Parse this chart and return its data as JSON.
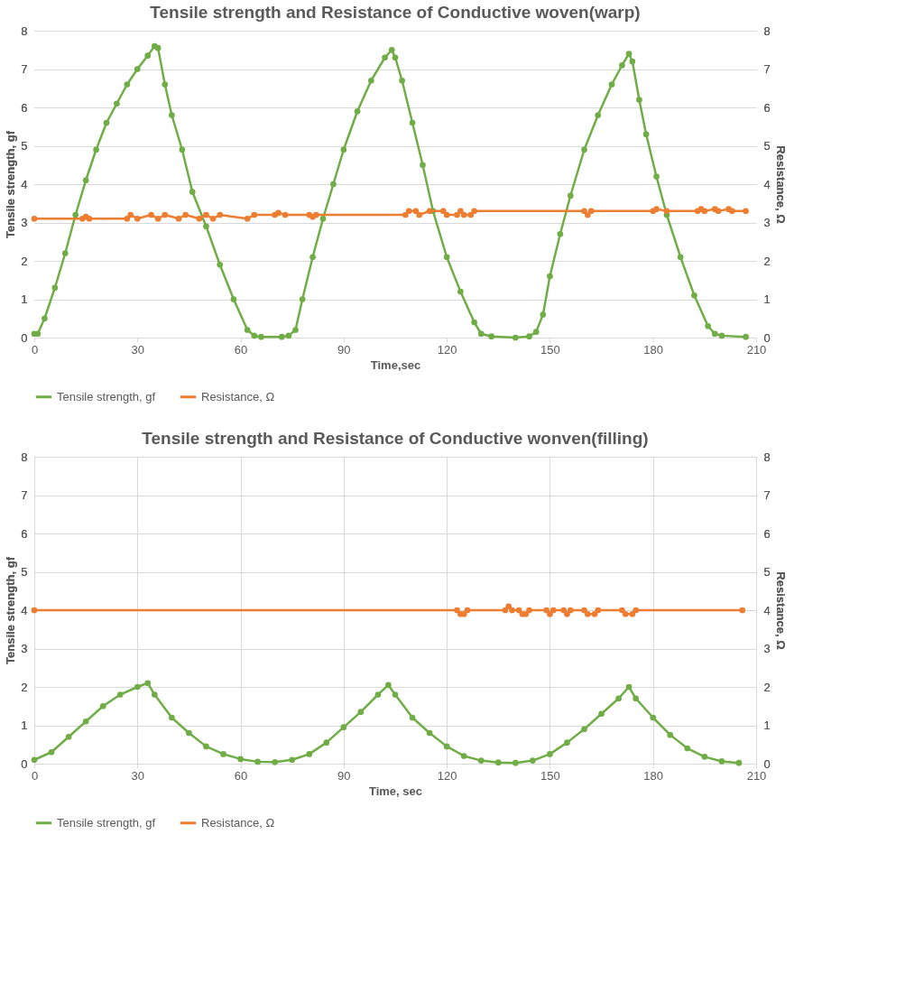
{
  "chart_data": [
    {
      "type": "line",
      "title": "Tensile strength and Resistance of Conductive woven(warp)",
      "xlabel": "Time,sec",
      "ylabel": "Tensile strength, gf",
      "y2label": "Resistance, Ω",
      "xlim": [
        0,
        210
      ],
      "xticks": [
        0,
        30,
        60,
        90,
        120,
        150,
        180,
        210
      ],
      "ylim": [
        0,
        8
      ],
      "yticks": [
        0,
        1,
        2,
        3,
        4,
        5,
        6,
        7,
        8
      ],
      "y2lim": [
        0,
        8
      ],
      "y2ticks": [
        0,
        1,
        2,
        3,
        4,
        5,
        6,
        7,
        8
      ],
      "grid": "y",
      "legend": "bottom",
      "marker": "circle",
      "line_style": "solid",
      "series": [
        {
          "name": "Tensile strength, gf",
          "color": "#70ad47",
          "x": [
            0,
            1,
            3,
            6,
            9,
            12,
            15,
            18,
            21,
            24,
            27,
            30,
            33,
            35,
            36,
            38,
            40,
            43,
            46,
            50,
            54,
            58,
            62,
            64,
            66,
            72,
            74,
            76,
            78,
            81,
            84,
            87,
            90,
            94,
            98,
            102,
            104,
            105,
            107,
            110,
            113,
            116,
            120,
            124,
            128,
            130,
            133,
            140,
            144,
            146,
            148,
            150,
            153,
            156,
            160,
            164,
            168,
            171,
            173,
            174,
            176,
            178,
            181,
            184,
            188,
            192,
            196,
            198,
            200,
            207
          ],
          "values": [
            0.1,
            0.1,
            0.5,
            1.3,
            2.2,
            3.2,
            4.1,
            4.9,
            5.6,
            6.1,
            6.6,
            7.0,
            7.35,
            7.6,
            7.55,
            6.6,
            5.8,
            4.9,
            3.8,
            2.9,
            1.9,
            1.0,
            0.2,
            0.05,
            0.02,
            0.02,
            0.05,
            0.2,
            1.0,
            2.1,
            3.1,
            4.0,
            4.9,
            5.9,
            6.7,
            7.3,
            7.5,
            7.3,
            6.7,
            5.6,
            4.5,
            3.3,
            2.1,
            1.2,
            0.4,
            0.1,
            0.03,
            0.0,
            0.03,
            0.15,
            0.6,
            1.6,
            2.7,
            3.7,
            4.9,
            5.8,
            6.6,
            7.1,
            7.4,
            7.2,
            6.2,
            5.3,
            4.2,
            3.2,
            2.1,
            1.1,
            0.3,
            0.1,
            0.05,
            0.02
          ]
        },
        {
          "name": "Resistance, Ω",
          "color": "#ed7d31",
          "axis": "y2",
          "x": [
            0,
            14,
            15,
            16,
            27,
            28,
            30,
            34,
            36,
            38,
            42,
            44,
            48,
            50,
            52,
            54,
            62,
            64,
            70,
            71,
            73,
            80,
            81,
            82,
            108,
            109,
            111,
            112,
            115,
            119,
            120,
            123,
            124,
            125,
            127,
            128,
            160,
            161,
            162,
            180,
            181,
            184,
            193,
            194,
            195,
            198,
            199,
            202,
            203,
            207
          ],
          "values": [
            3.1,
            3.1,
            3.15,
            3.1,
            3.1,
            3.2,
            3.1,
            3.2,
            3.1,
            3.2,
            3.1,
            3.2,
            3.1,
            3.2,
            3.1,
            3.2,
            3.1,
            3.2,
            3.2,
            3.25,
            3.2,
            3.2,
            3.15,
            3.2,
            3.2,
            3.3,
            3.3,
            3.2,
            3.3,
            3.3,
            3.2,
            3.2,
            3.3,
            3.2,
            3.2,
            3.3,
            3.3,
            3.2,
            3.3,
            3.3,
            3.35,
            3.3,
            3.3,
            3.35,
            3.3,
            3.35,
            3.3,
            3.35,
            3.3,
            3.3
          ]
        }
      ]
    },
    {
      "type": "line",
      "title": "Tensile strength and Resistance of Conductive wonven(filling)",
      "xlabel": "Time, sec",
      "ylabel": "Tensile strength, gf",
      "y2label": "Resistance, Ω",
      "xlim": [
        0,
        210
      ],
      "xticks": [
        0,
        30,
        60,
        90,
        120,
        150,
        180,
        210
      ],
      "ylim": [
        0,
        8
      ],
      "yticks": [
        0,
        1,
        2,
        3,
        4,
        5,
        6,
        7,
        8
      ],
      "y2lim": [
        0,
        8
      ],
      "y2ticks": [
        0,
        1,
        2,
        3,
        4,
        5,
        6,
        7,
        8
      ],
      "grid": true,
      "legend": "bottom",
      "marker": "circle",
      "line_style": "solid",
      "series": [
        {
          "name": "Tensile strength, gf",
          "color": "#70ad47",
          "x": [
            0,
            5,
            10,
            15,
            20,
            25,
            30,
            33,
            35,
            40,
            45,
            50,
            55,
            60,
            65,
            70,
            75,
            80,
            85,
            90,
            95,
            100,
            103,
            105,
            110,
            115,
            120,
            125,
            130,
            135,
            140,
            145,
            150,
            155,
            160,
            165,
            170,
            173,
            175,
            180,
            185,
            190,
            195,
            200,
            205
          ],
          "values": [
            0.1,
            0.3,
            0.7,
            1.1,
            1.5,
            1.8,
            2.0,
            2.1,
            1.8,
            1.2,
            0.8,
            0.45,
            0.25,
            0.12,
            0.05,
            0.04,
            0.1,
            0.25,
            0.55,
            0.95,
            1.35,
            1.8,
            2.05,
            1.8,
            1.2,
            0.8,
            0.45,
            0.2,
            0.08,
            0.03,
            0.02,
            0.08,
            0.25,
            0.55,
            0.9,
            1.3,
            1.7,
            2.0,
            1.7,
            1.2,
            0.75,
            0.4,
            0.18,
            0.06,
            0.02
          ]
        },
        {
          "name": "Resistance, Ω",
          "color": "#ed7d31",
          "axis": "y2",
          "x": [
            0,
            123,
            124,
            125,
            126,
            137,
            138,
            139,
            141,
            142,
            143,
            144,
            149,
            150,
            151,
            154,
            155,
            156,
            160,
            161,
            163,
            164,
            171,
            172,
            174,
            175,
            206
          ],
          "values": [
            4,
            4,
            3.9,
            3.9,
            4,
            4,
            4.1,
            4,
            4,
            3.9,
            3.9,
            4,
            4,
            3.9,
            4,
            4,
            3.9,
            4,
            4,
            3.9,
            3.9,
            4,
            4,
            3.9,
            3.9,
            4,
            4
          ]
        }
      ]
    }
  ]
}
